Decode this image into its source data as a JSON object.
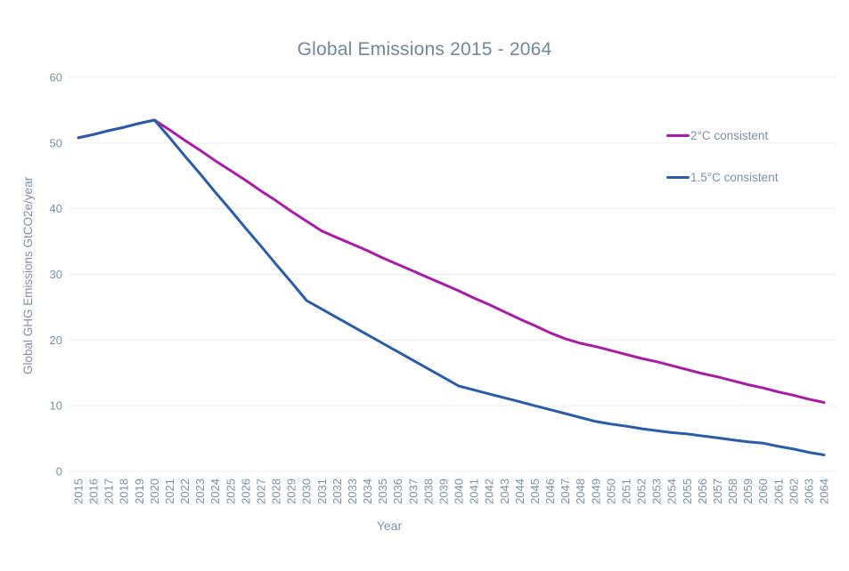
{
  "style": {
    "background": "#ffffff",
    "title_color": "#72879b",
    "tick_color": "#7c90a4",
    "axis_title_color": "#7c90a4",
    "legend_text_color": "#7c90a4",
    "grid_color": "#e9ecef"
  },
  "chart_data": {
    "type": "line",
    "title": "Global Emissions 2015 - 2064",
    "xlabel": "Year",
    "ylabel": "Global GHG Emissions GtCO2e/year",
    "ylim": [
      0,
      60
    ],
    "yticks": [
      0,
      10,
      20,
      30,
      40,
      50,
      60
    ],
    "grid": "horizontal-only",
    "legend_position": "inside-top-right",
    "categories": [
      "2015",
      "2016",
      "2017",
      "2018",
      "2019",
      "2020",
      "2021",
      "2022",
      "2023",
      "2024",
      "2025",
      "2026",
      "2027",
      "2028",
      "2029",
      "2030",
      "2031",
      "2032",
      "2033",
      "2034",
      "2035",
      "2036",
      "2037",
      "2038",
      "2039",
      "2040",
      "2041",
      "2042",
      "2043",
      "2044",
      "2045",
      "2046",
      "2047",
      "2048",
      "2049",
      "2050",
      "2051",
      "2052",
      "2053",
      "2054",
      "2055",
      "2056",
      "2057",
      "2058",
      "2059",
      "2060",
      "2061",
      "2062",
      "2063",
      "2064"
    ],
    "series": [
      {
        "name": "2°C consistent",
        "color": "#a81ca8",
        "values": [
          50.8,
          51.3,
          51.9,
          52.4,
          53.0,
          53.5,
          52.0,
          50.4,
          48.9,
          47.3,
          45.8,
          44.3,
          42.7,
          41.2,
          39.6,
          38.1,
          36.6,
          35.6,
          34.6,
          33.6,
          32.5,
          31.5,
          30.5,
          29.5,
          28.5,
          27.5,
          26.4,
          25.4,
          24.3,
          23.2,
          22.2,
          21.1,
          20.2,
          19.5,
          19.0,
          18.4,
          17.8,
          17.2,
          16.7,
          16.1,
          15.5,
          14.9,
          14.4,
          13.8,
          13.2,
          12.7,
          12.1,
          11.6,
          11.0,
          10.5
        ]
      },
      {
        "name": "1.5°C consistent",
        "color": "#2b5caa",
        "values": [
          50.8,
          51.3,
          51.9,
          52.4,
          53.0,
          53.5,
          50.8,
          48.0,
          45.3,
          42.5,
          39.8,
          37.0,
          34.3,
          31.5,
          28.8,
          26.0,
          24.7,
          23.4,
          22.1,
          20.8,
          19.5,
          18.2,
          16.9,
          15.6,
          14.3,
          13.0,
          12.4,
          11.8,
          11.2,
          10.6,
          10.0,
          9.4,
          8.8,
          8.2,
          7.6,
          7.2,
          6.9,
          6.5,
          6.2,
          5.9,
          5.7,
          5.4,
          5.1,
          4.8,
          4.5,
          4.3,
          3.8,
          3.4,
          2.9,
          2.5
        ]
      }
    ]
  }
}
